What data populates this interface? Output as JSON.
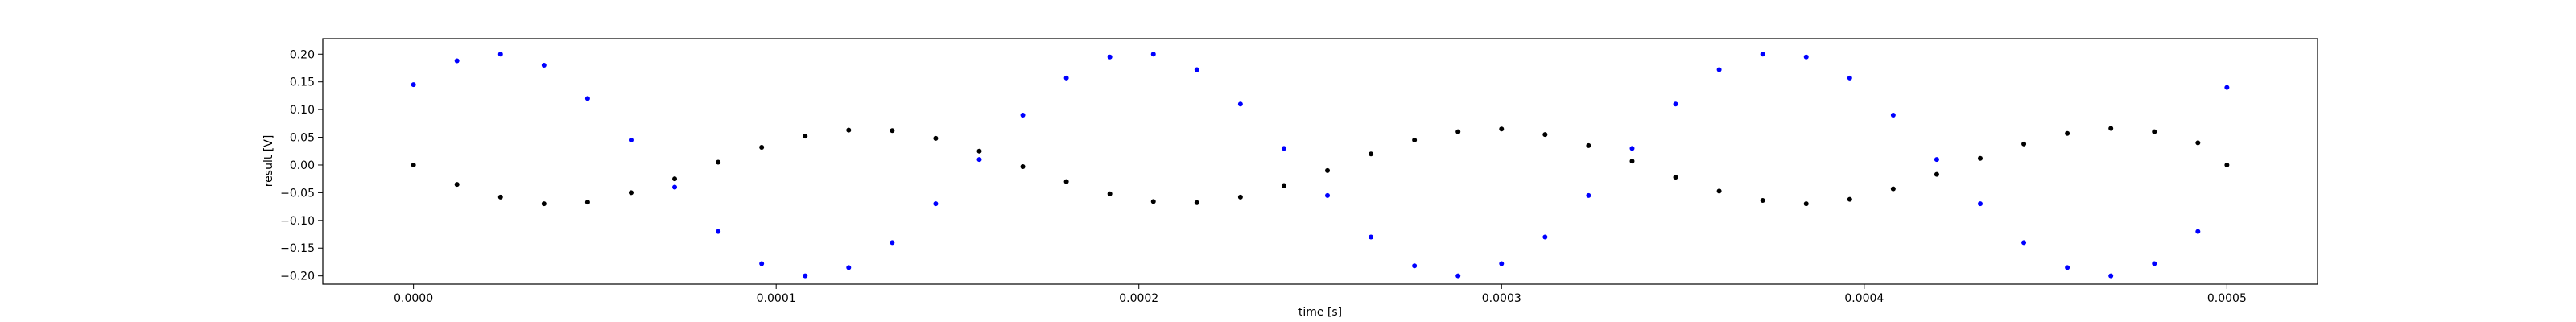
{
  "chart_data": {
    "type": "scatter",
    "title": "",
    "xlabel": "time [s]",
    "ylabel": "result [V]",
    "xlim": [
      -2.5e-05,
      0.000525
    ],
    "ylim": [
      -0.215,
      0.228
    ],
    "x_ticks": [
      0.0,
      0.0001,
      0.0002,
      0.0003,
      0.0004,
      0.0005
    ],
    "x_tick_labels": [
      "0.0000",
      "0.0001",
      "0.0002",
      "0.0003",
      "0.0004",
      "0.0005"
    ],
    "y_ticks": [
      -0.2,
      -0.15,
      -0.1,
      -0.05,
      0.0,
      0.05,
      0.1,
      0.15,
      0.2
    ],
    "y_tick_labels": [
      "−0.20",
      "−0.15",
      "−0.10",
      "−0.05",
      "0.00",
      "0.05",
      "0.10",
      "0.15",
      "0.20"
    ],
    "grid": false,
    "series": [
      {
        "color": "#0000ff",
        "marker": "dot",
        "x": [
          0.0,
          1.2e-05,
          2.4e-05,
          3.6e-05,
          4.8e-05,
          6e-05,
          7.2e-05,
          8.4e-05,
          9.6e-05,
          0.000108,
          0.00012,
          0.000132,
          0.000144,
          0.000156,
          0.000168,
          0.00018,
          0.000192,
          0.000204,
          0.000216,
          0.000228,
          0.00024,
          0.000252,
          0.000264,
          0.000276,
          0.000288,
          0.0003,
          0.000312,
          0.000324,
          0.000336,
          0.000348,
          0.00036,
          0.000372,
          0.000384,
          0.000396,
          0.000408,
          0.00042,
          0.000432,
          0.000444,
          0.000456,
          0.000468,
          0.00048,
          0.000492,
          0.0005
        ],
        "y": [
          0.145,
          0.188,
          0.2,
          0.18,
          0.12,
          0.045,
          -0.04,
          -0.12,
          -0.178,
          -0.2,
          -0.185,
          -0.14,
          -0.07,
          0.01,
          0.09,
          0.157,
          0.195,
          0.2,
          0.172,
          0.11,
          0.03,
          -0.055,
          -0.13,
          -0.182,
          -0.2,
          -0.178,
          -0.13,
          -0.055,
          0.03,
          0.11,
          0.172,
          0.2,
          0.195,
          0.157,
          0.09,
          0.01,
          -0.07,
          -0.14,
          -0.185,
          -0.2,
          -0.178,
          -0.12,
          0.14
        ]
      },
      {
        "color": "#000000",
        "marker": "dot",
        "x": [
          0.0,
          1.2e-05,
          2.4e-05,
          3.6e-05,
          4.8e-05,
          6e-05,
          7.2e-05,
          8.4e-05,
          9.6e-05,
          0.000108,
          0.00012,
          0.000132,
          0.000144,
          0.000156,
          0.000168,
          0.00018,
          0.000192,
          0.000204,
          0.000216,
          0.000228,
          0.00024,
          0.000252,
          0.000264,
          0.000276,
          0.000288,
          0.0003,
          0.000312,
          0.000324,
          0.000336,
          0.000348,
          0.00036,
          0.000372,
          0.000384,
          0.000396,
          0.000408,
          0.00042,
          0.000432,
          0.000444,
          0.000456,
          0.000468,
          0.00048,
          0.000492,
          0.0005
        ],
        "y": [
          0.0,
          -0.035,
          -0.058,
          -0.07,
          -0.067,
          -0.05,
          -0.025,
          0.005,
          0.032,
          0.052,
          0.063,
          0.062,
          0.048,
          0.025,
          -0.003,
          -0.03,
          -0.052,
          -0.066,
          -0.068,
          -0.058,
          -0.037,
          -0.01,
          0.02,
          0.045,
          0.06,
          0.065,
          0.055,
          0.035,
          0.007,
          -0.022,
          -0.047,
          -0.064,
          -0.07,
          -0.062,
          -0.043,
          -0.017,
          0.012,
          0.038,
          0.057,
          0.066,
          0.06,
          0.04,
          0.0
        ]
      }
    ]
  }
}
